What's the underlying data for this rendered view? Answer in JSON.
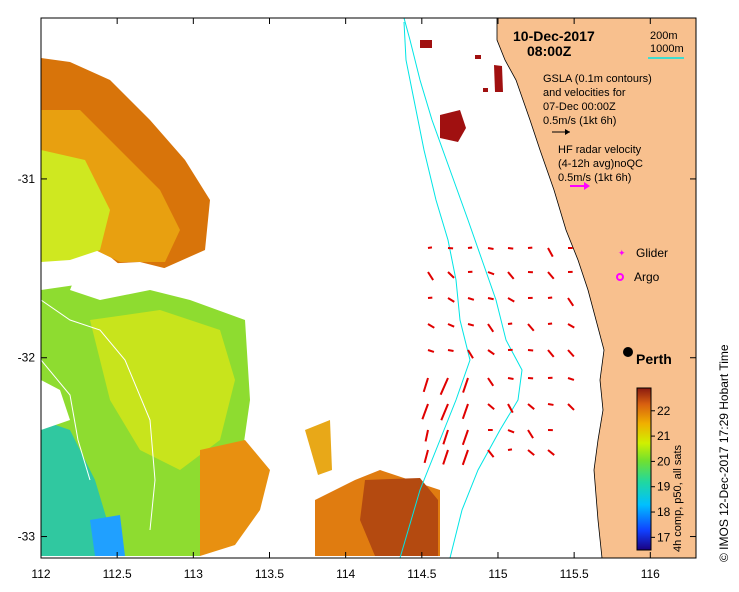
{
  "title": {
    "date": "10-Dec-2017",
    "time": "08:00Z"
  },
  "depth_contours": {
    "label_200": "200m",
    "label_1000": "1000m",
    "line_color": "#00e5e5"
  },
  "gsla_note": {
    "line1": "GSLA (0.1m contours)",
    "line2": "and velocities for",
    "line3": "07-Dec 00:00Z",
    "line4": "0.5m/s (1kt 6h)",
    "arrow_color": "#000000"
  },
  "hf_radar_note": {
    "line1": "HF radar velocity",
    "line2": "(4-12h avg)noQC",
    "line3": "0.5m/s (1kt 6h)",
    "arrow_color": "#ff00ff"
  },
  "legend": {
    "glider_label": "Glider",
    "argo_label": "Argo",
    "glider_color": "#ff00ff",
    "argo_color": "#ff00ff"
  },
  "city": {
    "name": "Perth",
    "lon": 115.86,
    "lat": -31.95
  },
  "axes": {
    "x_ticks": [
      "112",
      "112.5",
      "113",
      "113.5",
      "114",
      "114.5",
      "115",
      "115.5",
      "116"
    ],
    "x_values": [
      112,
      112.5,
      113,
      113.5,
      114,
      114.5,
      115,
      115.5,
      116
    ],
    "y_ticks": [
      "-31",
      "-32",
      "-33"
    ],
    "y_values": [
      -31,
      -32,
      -33
    ],
    "lon_range": [
      112,
      116.3
    ],
    "lat_range": [
      -33.12,
      -30.1
    ]
  },
  "colorbar": {
    "label": "4h comp, p50, all sats",
    "ticks": [
      "17",
      "18",
      "19",
      "20",
      "21",
      "22"
    ],
    "values": [
      17,
      18,
      19,
      20,
      21,
      22
    ],
    "range": [
      16.5,
      22.9
    ]
  },
  "credit": "© IMOS 12-Dec-2017 17:29 Hobart Time",
  "colors": {
    "land": "#f8c08e",
    "velocity_arrows": "#e00000",
    "sst_patch": "#b44a10"
  }
}
